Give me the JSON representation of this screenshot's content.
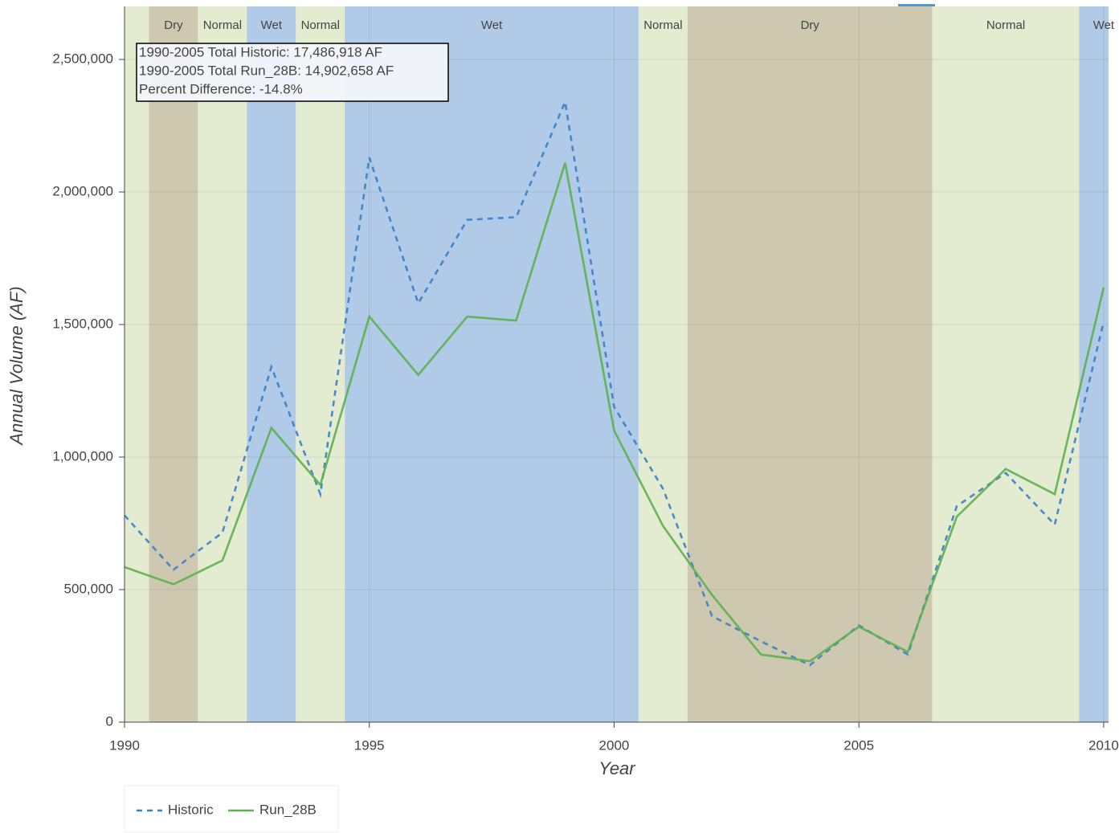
{
  "chart_data": {
    "type": "line",
    "x_label": "Year",
    "y_label": "Annual Volume (AF)",
    "x": [
      1990,
      1991,
      1992,
      1993,
      1994,
      1995,
      1996,
      1997,
      1998,
      1999,
      2000,
      2001,
      2002,
      2003,
      2004,
      2005,
      2006,
      2007,
      2008,
      2009,
      2010
    ],
    "series": [
      {
        "name": "Historic",
        "color": "#3a7fc8",
        "dashed": true,
        "values": [
          780000,
          575000,
          715000,
          1340000,
          860000,
          2130000,
          1580000,
          1895000,
          1905000,
          2340000,
          1190000,
          880000,
          400000,
          305000,
          215000,
          365000,
          255000,
          815000,
          940000,
          745000,
          1510000
        ]
      },
      {
        "name": "Run_28B",
        "color": "#5cb04f",
        "dashed": false,
        "values": [
          585000,
          520000,
          610000,
          1110000,
          895000,
          1530000,
          1310000,
          1530000,
          1515000,
          2110000,
          1100000,
          740000,
          480000,
          255000,
          230000,
          360000,
          265000,
          775000,
          955000,
          860000,
          1640000
        ]
      }
    ],
    "bands": [
      {
        "start": 1989.5,
        "end": 1990.5,
        "label": null,
        "color": "#e3ebd0"
      },
      {
        "start": 1990.5,
        "end": 1991.5,
        "label": "Dry",
        "color": "#cfc8b0"
      },
      {
        "start": 1991.5,
        "end": 1992.5,
        "label": "Normal",
        "color": "#e3ebd0"
      },
      {
        "start": 1992.5,
        "end": 1993.5,
        "label": "Wet",
        "color": "#b0cae8"
      },
      {
        "start": 1993.5,
        "end": 1994.5,
        "label": "Normal",
        "color": "#e3ebd0"
      },
      {
        "start": 1994.5,
        "end": 2000.5,
        "label": "Wet",
        "color": "#b0cae8"
      },
      {
        "start": 2000.5,
        "end": 2001.5,
        "label": "Normal",
        "color": "#e3ebd0"
      },
      {
        "start": 2001.5,
        "end": 2006.5,
        "label": "Dry",
        "color": "#cfc8b0"
      },
      {
        "start": 2006.5,
        "end": 2009.5,
        "label": "Normal",
        "color": "#e3ebd0"
      },
      {
        "start": 2009.5,
        "end": 2010.5,
        "label": "Wet",
        "color": "#b0cae8"
      }
    ],
    "annotations": [
      "1990-2005 Total Historic: 17,486,918 AF",
      "1990-2005 Total Run_28B: 14,902,658 AF",
      "Percent Difference: -14.8%"
    ],
    "xlim": [
      1990,
      2010.1
    ],
    "xticks": [
      1990,
      1995,
      2000,
      2005,
      2010
    ],
    "ylim": [
      0,
      2700000
    ],
    "yticks": [
      0,
      {
        "value": 500000,
        "label": "500,000"
      },
      {
        "value": 1000000,
        "label": "1,000,000"
      },
      {
        "value": 1500000,
        "label": "1,500,000"
      },
      {
        "value": 2000000,
        "label": "2,000,000"
      },
      {
        "value": 2500000,
        "label": "2,500,000"
      }
    ],
    "grid": true,
    "legend": "bottom-left"
  }
}
